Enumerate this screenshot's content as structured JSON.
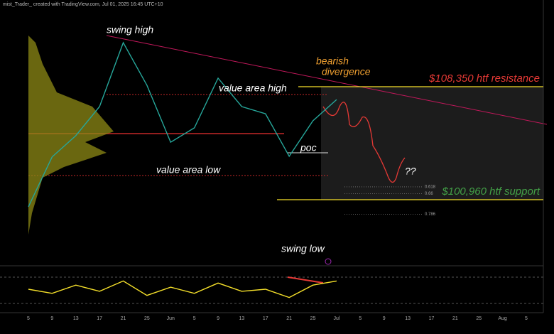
{
  "header": "mist_Trader_ created with TradingView.com, Jul 01, 2025 16:45 UTC+10",
  "chart_data": [
    {
      "type": "line",
      "color": "#26a69a",
      "categories": [
        "5",
        "9",
        "13",
        "17",
        "21",
        "25",
        "Jun",
        "5",
        "9",
        "13",
        "17",
        "21",
        "25",
        "Jul",
        "5",
        "9",
        "13",
        "17",
        "21",
        "25",
        "Aug",
        "5"
      ],
      "values": [
        100500,
        103760,
        105150,
        107050,
        111230,
        108440,
        104720,
        105660,
        108910,
        107050,
        106580,
        103800,
        106120,
        107510,
        null,
        null,
        null,
        null,
        null,
        null,
        null,
        null
      ],
      "ylim": [
        96730,
        113790
      ],
      "levels": [
        {
          "value": 108350,
          "label": "$108,350 htf resistance",
          "color": "#e53935"
        },
        {
          "value": 100960,
          "label": "$100,960 htf support",
          "color": "#43a047"
        },
        {
          "value": 101800,
          "label": "0.618",
          "color": "#9e9e9e"
        },
        {
          "value": 101350,
          "label": "0.66",
          "color": "#9e9e9e"
        },
        {
          "value": 100000,
          "label": "0.786",
          "color": "#9e9e9e"
        }
      ],
      "annotations": [
        "swing high",
        "value area high",
        "poc",
        "value area low",
        "swing low",
        "bearish",
        "divergence",
        "??"
      ]
    },
    {
      "type": "line",
      "color": "#f5e02a",
      "categories": [
        "5",
        "9",
        "13",
        "17",
        "21",
        "25",
        "Jun",
        "5",
        "9",
        "13",
        "17",
        "21",
        "25",
        "Jul",
        "5",
        "9",
        "13",
        "17",
        "21",
        "25",
        "Aug",
        "5"
      ],
      "values": [
        50,
        40,
        60,
        45,
        70,
        35,
        55,
        40,
        65,
        45,
        50,
        30,
        60,
        70,
        null,
        null,
        null,
        null,
        null,
        null,
        null,
        null
      ],
      "ylim": [
        0,
        100
      ]
    }
  ]
}
